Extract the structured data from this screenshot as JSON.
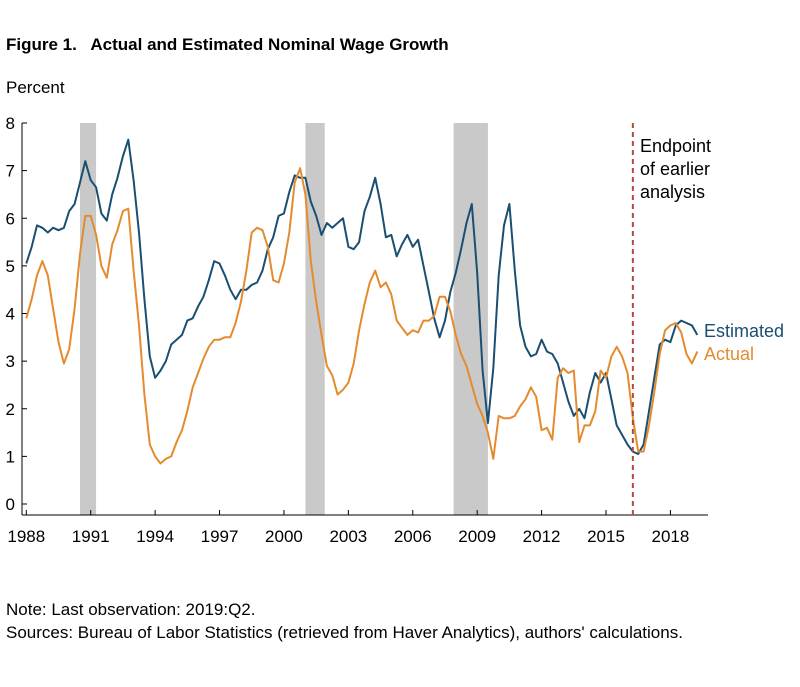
{
  "figure": {
    "title": "Figure 1.   Actual and Estimated Nominal Wage Growth",
    "y_unit": "Percent"
  },
  "annotation": {
    "lines": [
      "Endpoint",
      "of earlier",
      "analysis"
    ],
    "x": 2016.25,
    "color": "#b04a3a"
  },
  "notes": {
    "note": "Note: Last observation: 2019:Q2.",
    "sources": "Sources: Bureau of Labor Statistics (retrieved from Haver Analytics), authors' calculations."
  },
  "chart_data": {
    "type": "line",
    "title": "Actual and Estimated Nominal Wage Growth",
    "ylabel": "Percent",
    "xlim": [
      1987.8,
      2019.75
    ],
    "ylim": [
      0,
      8
    ],
    "y_ticks": [
      0,
      1,
      2,
      3,
      4,
      5,
      6,
      7,
      8
    ],
    "x_ticks": [
      1988,
      1991,
      1994,
      1997,
      2000,
      2003,
      2006,
      2009,
      2012,
      2015,
      2018
    ],
    "grid": false,
    "legend": "inline-right",
    "recessions": [
      [
        1990.5,
        1991.25
      ],
      [
        2001.0,
        2001.9
      ],
      [
        2007.9,
        2009.5
      ]
    ],
    "series": [
      {
        "name": "Estimated",
        "color": "#1a4f72",
        "points": [
          [
            1988.0,
            5.05
          ],
          [
            1988.25,
            5.4
          ],
          [
            1988.5,
            5.85
          ],
          [
            1988.75,
            5.8
          ],
          [
            1989.0,
            5.7
          ],
          [
            1989.25,
            5.8
          ],
          [
            1989.5,
            5.75
          ],
          [
            1989.75,
            5.8
          ],
          [
            1990.0,
            6.15
          ],
          [
            1990.25,
            6.3
          ],
          [
            1990.5,
            6.75
          ],
          [
            1990.75,
            7.2
          ],
          [
            1991.0,
            6.8
          ],
          [
            1991.25,
            6.65
          ],
          [
            1991.5,
            6.1
          ],
          [
            1991.75,
            5.95
          ],
          [
            1992.0,
            6.5
          ],
          [
            1992.25,
            6.85
          ],
          [
            1992.5,
            7.3
          ],
          [
            1992.75,
            7.65
          ],
          [
            1993.0,
            6.8
          ],
          [
            1993.25,
            5.7
          ],
          [
            1993.5,
            4.3
          ],
          [
            1993.75,
            3.1
          ],
          [
            1994.0,
            2.65
          ],
          [
            1994.25,
            2.8
          ],
          [
            1994.5,
            3.0
          ],
          [
            1994.75,
            3.35
          ],
          [
            1995.0,
            3.45
          ],
          [
            1995.25,
            3.55
          ],
          [
            1995.5,
            3.85
          ],
          [
            1995.75,
            3.9
          ],
          [
            1996.0,
            4.15
          ],
          [
            1996.25,
            4.35
          ],
          [
            1996.5,
            4.7
          ],
          [
            1996.75,
            5.1
          ],
          [
            1997.0,
            5.05
          ],
          [
            1997.25,
            4.8
          ],
          [
            1997.5,
            4.5
          ],
          [
            1997.75,
            4.3
          ],
          [
            1998.0,
            4.5
          ],
          [
            1998.25,
            4.5
          ],
          [
            1998.5,
            4.6
          ],
          [
            1998.75,
            4.65
          ],
          [
            1999.0,
            4.9
          ],
          [
            1999.25,
            5.35
          ],
          [
            1999.5,
            5.6
          ],
          [
            1999.75,
            6.05
          ],
          [
            2000.0,
            6.1
          ],
          [
            2000.25,
            6.55
          ],
          [
            2000.5,
            6.9
          ],
          [
            2000.75,
            6.85
          ],
          [
            2001.0,
            6.85
          ],
          [
            2001.25,
            6.35
          ],
          [
            2001.5,
            6.05
          ],
          [
            2001.75,
            5.65
          ],
          [
            2002.0,
            5.9
          ],
          [
            2002.25,
            5.8
          ],
          [
            2002.5,
            5.9
          ],
          [
            2002.75,
            6.0
          ],
          [
            2003.0,
            5.4
          ],
          [
            2003.25,
            5.35
          ],
          [
            2003.5,
            5.5
          ],
          [
            2003.75,
            6.15
          ],
          [
            2004.0,
            6.45
          ],
          [
            2004.25,
            6.85
          ],
          [
            2004.5,
            6.3
          ],
          [
            2004.75,
            5.6
          ],
          [
            2005.0,
            5.65
          ],
          [
            2005.25,
            5.2
          ],
          [
            2005.5,
            5.45
          ],
          [
            2005.75,
            5.65
          ],
          [
            2006.0,
            5.4
          ],
          [
            2006.25,
            5.55
          ],
          [
            2006.5,
            5.0
          ],
          [
            2006.75,
            4.45
          ],
          [
            2007.0,
            3.9
          ],
          [
            2007.25,
            3.5
          ],
          [
            2007.5,
            3.85
          ],
          [
            2007.75,
            4.45
          ],
          [
            2008.0,
            4.85
          ],
          [
            2008.25,
            5.35
          ],
          [
            2008.5,
            5.9
          ],
          [
            2008.75,
            6.3
          ],
          [
            2009.0,
            4.85
          ],
          [
            2009.25,
            2.8
          ],
          [
            2009.5,
            1.7
          ],
          [
            2009.75,
            2.85
          ],
          [
            2010.0,
            4.8
          ],
          [
            2010.25,
            5.85
          ],
          [
            2010.5,
            6.3
          ],
          [
            2010.75,
            4.9
          ],
          [
            2011.0,
            3.75
          ],
          [
            2011.25,
            3.3
          ],
          [
            2011.5,
            3.1
          ],
          [
            2011.75,
            3.15
          ],
          [
            2012.0,
            3.45
          ],
          [
            2012.25,
            3.2
          ],
          [
            2012.5,
            3.15
          ],
          [
            2012.75,
            2.95
          ],
          [
            2013.0,
            2.55
          ],
          [
            2013.25,
            2.15
          ],
          [
            2013.5,
            1.85
          ],
          [
            2013.75,
            2.0
          ],
          [
            2014.0,
            1.8
          ],
          [
            2014.25,
            2.35
          ],
          [
            2014.5,
            2.75
          ],
          [
            2014.75,
            2.55
          ],
          [
            2015.0,
            2.75
          ],
          [
            2015.25,
            2.2
          ],
          [
            2015.5,
            1.65
          ],
          [
            2015.75,
            1.45
          ],
          [
            2016.0,
            1.25
          ],
          [
            2016.25,
            1.1
          ],
          [
            2016.5,
            1.05
          ],
          [
            2016.75,
            1.25
          ],
          [
            2017.0,
            1.95
          ],
          [
            2017.25,
            2.65
          ],
          [
            2017.5,
            3.35
          ],
          [
            2017.75,
            3.45
          ],
          [
            2018.0,
            3.4
          ],
          [
            2018.25,
            3.75
          ],
          [
            2018.5,
            3.85
          ],
          [
            2018.75,
            3.8
          ],
          [
            2019.0,
            3.75
          ],
          [
            2019.25,
            3.55
          ]
        ]
      },
      {
        "name": "Actual",
        "color": "#e58b2f",
        "points": [
          [
            1988.0,
            3.9
          ],
          [
            1988.25,
            4.3
          ],
          [
            1988.5,
            4.8
          ],
          [
            1988.75,
            5.1
          ],
          [
            1989.0,
            4.8
          ],
          [
            1989.25,
            4.1
          ],
          [
            1989.5,
            3.4
          ],
          [
            1989.75,
            2.95
          ],
          [
            1990.0,
            3.25
          ],
          [
            1990.25,
            4.1
          ],
          [
            1990.5,
            5.25
          ],
          [
            1990.75,
            6.05
          ],
          [
            1991.0,
            6.05
          ],
          [
            1991.25,
            5.65
          ],
          [
            1991.5,
            5.0
          ],
          [
            1991.75,
            4.75
          ],
          [
            1992.0,
            5.45
          ],
          [
            1992.25,
            5.75
          ],
          [
            1992.5,
            6.15
          ],
          [
            1992.75,
            6.2
          ],
          [
            1993.0,
            4.9
          ],
          [
            1993.25,
            3.75
          ],
          [
            1993.5,
            2.3
          ],
          [
            1993.75,
            1.25
          ],
          [
            1994.0,
            1.0
          ],
          [
            1994.25,
            0.85
          ],
          [
            1994.5,
            0.95
          ],
          [
            1994.75,
            1.0
          ],
          [
            1995.0,
            1.3
          ],
          [
            1995.25,
            1.55
          ],
          [
            1995.5,
            1.95
          ],
          [
            1995.75,
            2.45
          ],
          [
            1996.0,
            2.75
          ],
          [
            1996.25,
            3.05
          ],
          [
            1996.5,
            3.3
          ],
          [
            1996.75,
            3.45
          ],
          [
            1997.0,
            3.45
          ],
          [
            1997.25,
            3.5
          ],
          [
            1997.5,
            3.5
          ],
          [
            1997.75,
            3.8
          ],
          [
            1998.0,
            4.25
          ],
          [
            1998.25,
            4.9
          ],
          [
            1998.5,
            5.7
          ],
          [
            1998.75,
            5.8
          ],
          [
            1999.0,
            5.75
          ],
          [
            1999.25,
            5.4
          ],
          [
            1999.5,
            4.7
          ],
          [
            1999.75,
            4.65
          ],
          [
            2000.0,
            5.05
          ],
          [
            2000.25,
            5.7
          ],
          [
            2000.5,
            6.75
          ],
          [
            2000.75,
            7.05
          ],
          [
            2001.0,
            6.5
          ],
          [
            2001.25,
            5.1
          ],
          [
            2001.5,
            4.25
          ],
          [
            2001.75,
            3.55
          ],
          [
            2002.0,
            2.9
          ],
          [
            2002.25,
            2.7
          ],
          [
            2002.5,
            2.3
          ],
          [
            2002.75,
            2.4
          ],
          [
            2003.0,
            2.55
          ],
          [
            2003.25,
            2.95
          ],
          [
            2003.5,
            3.65
          ],
          [
            2003.75,
            4.2
          ],
          [
            2004.0,
            4.65
          ],
          [
            2004.25,
            4.9
          ],
          [
            2004.5,
            4.55
          ],
          [
            2004.75,
            4.65
          ],
          [
            2005.0,
            4.4
          ],
          [
            2005.25,
            3.85
          ],
          [
            2005.5,
            3.7
          ],
          [
            2005.75,
            3.55
          ],
          [
            2006.0,
            3.65
          ],
          [
            2006.25,
            3.6
          ],
          [
            2006.5,
            3.85
          ],
          [
            2006.75,
            3.85
          ],
          [
            2007.0,
            3.95
          ],
          [
            2007.25,
            4.35
          ],
          [
            2007.5,
            4.35
          ],
          [
            2007.75,
            4.05
          ],
          [
            2008.0,
            3.55
          ],
          [
            2008.25,
            3.15
          ],
          [
            2008.5,
            2.9
          ],
          [
            2008.75,
            2.5
          ],
          [
            2009.0,
            2.1
          ],
          [
            2009.25,
            1.85
          ],
          [
            2009.5,
            1.5
          ],
          [
            2009.75,
            0.95
          ],
          [
            2010.0,
            1.85
          ],
          [
            2010.25,
            1.8
          ],
          [
            2010.5,
            1.8
          ],
          [
            2010.75,
            1.85
          ],
          [
            2011.0,
            2.05
          ],
          [
            2011.25,
            2.2
          ],
          [
            2011.5,
            2.45
          ],
          [
            2011.75,
            2.25
          ],
          [
            2012.0,
            1.55
          ],
          [
            2012.25,
            1.6
          ],
          [
            2012.5,
            1.35
          ],
          [
            2012.75,
            2.65
          ],
          [
            2013.0,
            2.85
          ],
          [
            2013.25,
            2.75
          ],
          [
            2013.5,
            2.8
          ],
          [
            2013.75,
            1.3
          ],
          [
            2014.0,
            1.65
          ],
          [
            2014.25,
            1.65
          ],
          [
            2014.5,
            1.95
          ],
          [
            2014.75,
            2.8
          ],
          [
            2015.0,
            2.65
          ],
          [
            2015.25,
            3.1
          ],
          [
            2015.5,
            3.3
          ],
          [
            2015.75,
            3.1
          ],
          [
            2016.0,
            2.75
          ],
          [
            2016.25,
            1.8
          ],
          [
            2016.5,
            1.1
          ],
          [
            2016.75,
            1.1
          ],
          [
            2017.0,
            1.65
          ],
          [
            2017.25,
            2.35
          ],
          [
            2017.5,
            3.15
          ],
          [
            2017.75,
            3.65
          ],
          [
            2018.0,
            3.75
          ],
          [
            2018.25,
            3.8
          ],
          [
            2018.5,
            3.6
          ],
          [
            2018.75,
            3.15
          ],
          [
            2019.0,
            2.95
          ],
          [
            2019.25,
            3.2
          ]
        ]
      }
    ]
  }
}
